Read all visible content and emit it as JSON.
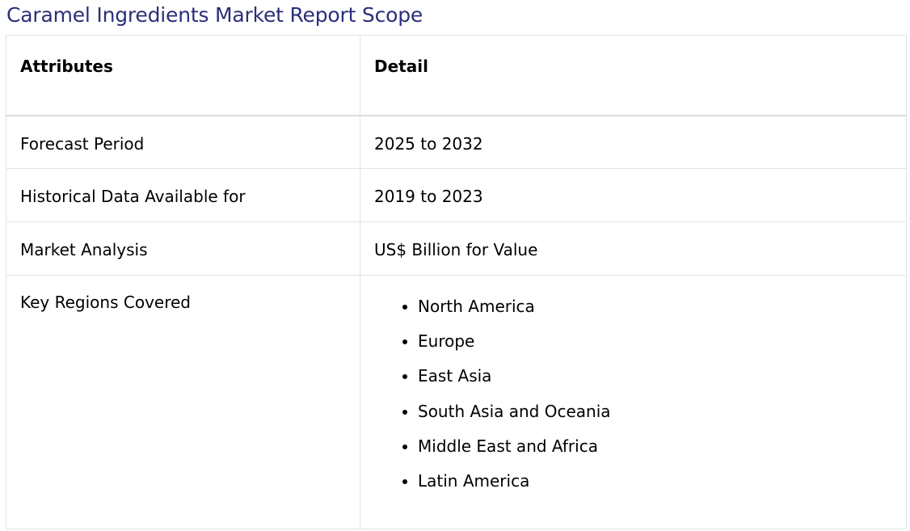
{
  "title": "Caramel Ingredients Market Report Scope",
  "colors": {
    "title": "#2a2f7a",
    "border": "#e3e3e3",
    "text": "#000000"
  },
  "table": {
    "headers": [
      "Attributes",
      "Detail"
    ],
    "rows": [
      {
        "attribute": "Forecast Period",
        "detail": "2025 to 2032"
      },
      {
        "attribute": "Historical Data Available for",
        "detail": "2019 to 2023"
      },
      {
        "attribute": "Market Analysis",
        "detail": "US$ Billion for Value"
      }
    ],
    "regions": {
      "attribute": "Key Regions Covered",
      "items": [
        "North America",
        "Europe",
        "East Asia",
        "South Asia and Oceania",
        "Middle East and Africa",
        "Latin America"
      ]
    }
  }
}
